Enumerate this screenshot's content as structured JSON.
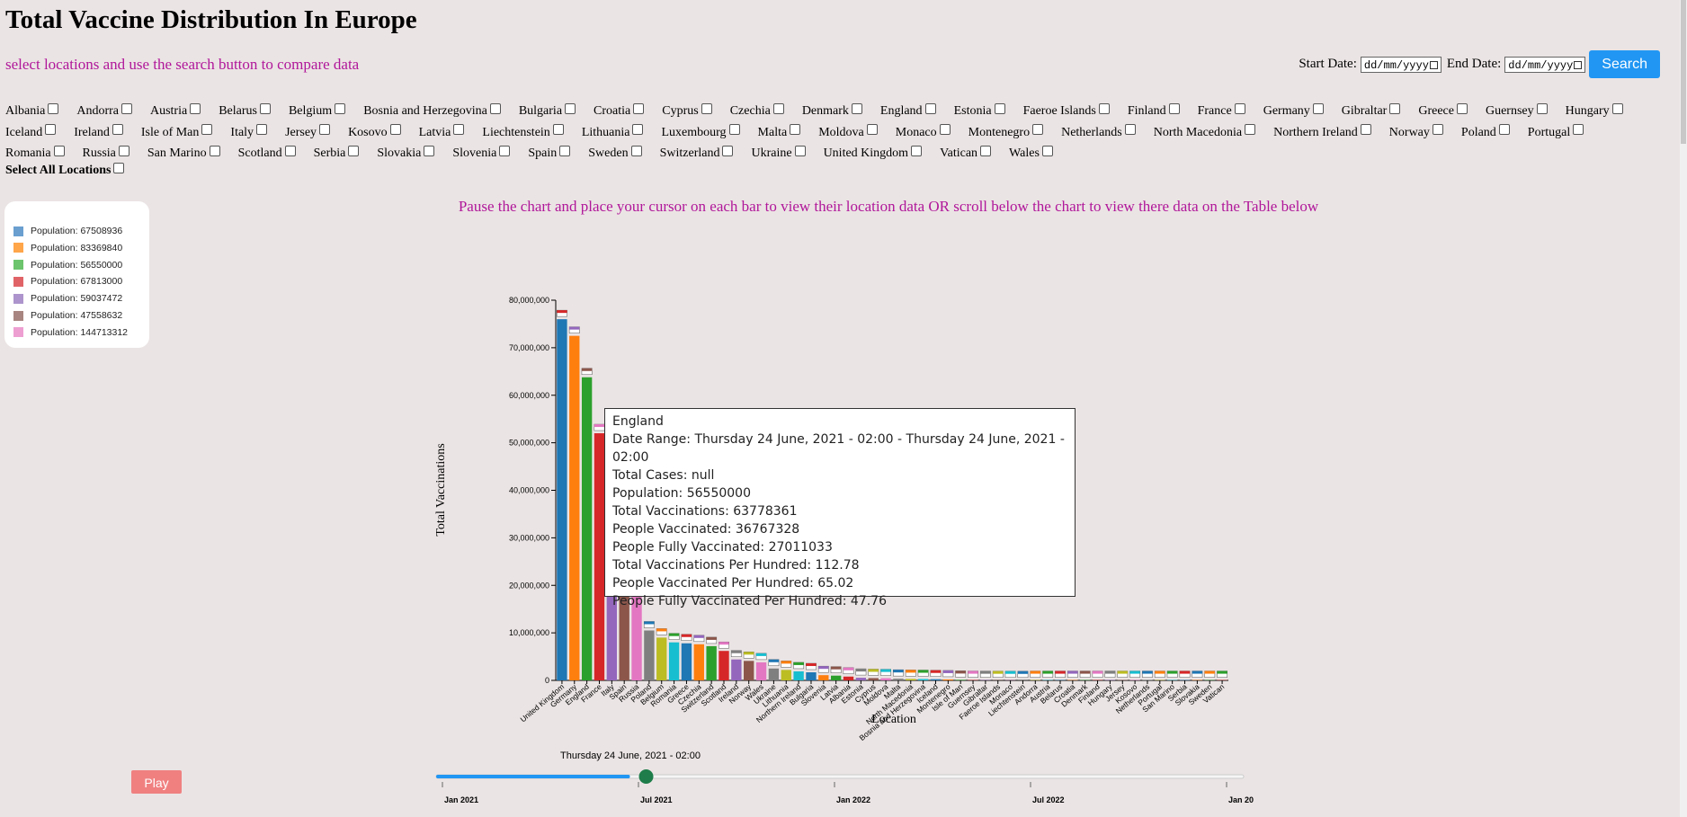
{
  "page": {
    "title": "Total Vaccine Distribution In Europe",
    "subtitle": "select locations and use the search button to compare data",
    "start_label": "Start Date:",
    "end_label": "End Date:",
    "date_placeholder": "dd/mm/yyyy",
    "search_label": "Search",
    "select_all_label": "Select All Locations",
    "pause_note": "Pause the chart and place your cursor on each bar to view their location data OR scroll below the chart to view there data on the Table below",
    "play_label": "Play",
    "slider_date": "Thursday 24 June, 2021 - 02:00"
  },
  "locations": [
    "Albania",
    "Andorra",
    "Austria",
    "Belarus",
    "Belgium",
    "Bosnia and Herzegovina",
    "Bulgaria",
    "Croatia",
    "Cyprus",
    "Czechia",
    "Denmark",
    "England",
    "Estonia",
    "Faeroe Islands",
    "Finland",
    "France",
    "Germany",
    "Gibraltar",
    "Greece",
    "Guernsey",
    "Hungary",
    "Iceland",
    "Ireland",
    "Isle of Man",
    "Italy",
    "Jersey",
    "Kosovo",
    "Latvia",
    "Liechtenstein",
    "Lithuania",
    "Luxembourg",
    "Malta",
    "Moldova",
    "Monaco",
    "Montenegro",
    "Netherlands",
    "North Macedonia",
    "Northern Ireland",
    "Norway",
    "Poland",
    "Portugal",
    "Romania",
    "Russia",
    "San Marino",
    "Scotland",
    "Serbia",
    "Slovakia",
    "Slovenia",
    "Spain",
    "Sweden",
    "Switzerland",
    "Ukraine",
    "United Kingdom",
    "Vatican",
    "Wales"
  ],
  "legend": [
    {
      "label": "Population: 67508936",
      "color": "#6a9fd0"
    },
    {
      "label": "Population: 83369840",
      "color": "#ffa54a"
    },
    {
      "label": "Population: 56550000",
      "color": "#6cc46c"
    },
    {
      "label": "Population: 67813000",
      "color": "#e06467"
    },
    {
      "label": "Population: 59037472",
      "color": "#ad94cc"
    },
    {
      "label": "Population: 47558632",
      "color": "#a88580"
    },
    {
      "label": "Population: 144713312",
      "color": "#ee9fd2"
    }
  ],
  "tooltip": {
    "lines": [
      "England",
      "Date Range: Thursday 24 June, 2021 - 02:00 - Thursday 24 June, 2021 - 02:00",
      "Total Cases: null",
      "Population: 56550000",
      "Total Vaccinations: 63778361",
      "People Vaccinated: 36767328",
      "People Fully Vaccinated: 27011033",
      "Total Vaccinations Per Hundred: 112.78",
      "People Vaccinated Per Hundred: 65.02",
      "People Fully Vaccinated Per Hundred: 47.76"
    ]
  },
  "timeline": {
    "ticks": [
      "Jan 2021",
      "Jul 2021",
      "Jan 2022",
      "Jul 2022",
      "Jan 20"
    ],
    "progress": 0.24
  },
  "chart_data": {
    "type": "bar",
    "xlabel": "Location",
    "ylabel": "Total Vaccinations",
    "ylim": [
      0,
      80000000
    ],
    "yticks": [
      "0",
      "10,000,000",
      "20,000,000",
      "30,000,000",
      "40,000,000",
      "50,000,000",
      "60,000,000",
      "70,000,000",
      "80,000,000"
    ],
    "categories": [
      "United Kingdom",
      "Germany",
      "England",
      "France",
      "Italy",
      "Spain",
      "Russia",
      "Poland",
      "Belgium",
      "Romania",
      "Greece",
      "Czechia",
      "Switzerland",
      "Scotland",
      "Ireland",
      "Norway",
      "Wales",
      "Ukraine",
      "Lithuania",
      "Northern Ireland",
      "Bulgaria",
      "Slovenia",
      "Latvia",
      "Albania",
      "Estonia",
      "Cyprus",
      "Moldova",
      "Malta",
      "North Macedonia",
      "Bosnia and Herzegovina",
      "Iceland",
      "Montenegro",
      "Isle of Man",
      "Guernsey",
      "Gibraltar",
      "Faeroe Islands",
      "Monaco",
      "Liechtenstein",
      "Andorra",
      "Austria",
      "Belarus",
      "Croatia",
      "Denmark",
      "Finland",
      "Hungary",
      "Jersey",
      "Kosovo",
      "Netherlands",
      "Portugal",
      "San Marino",
      "Serbia",
      "Slovakia",
      "Sweden",
      "Vatican"
    ],
    "values": [
      76000000,
      72500000,
      63778361,
      52000000,
      47000000,
      45000000,
      34000000,
      10500000,
      9000000,
      8000000,
      7800000,
      7600000,
      7200000,
      6200000,
      4400000,
      4100000,
      3800000,
      2500000,
      2200000,
      1900000,
      1700000,
      1100000,
      1000000,
      800000,
      550000,
      480000,
      450000,
      350000,
      300000,
      280000,
      240000,
      200000,
      120000,
      80000,
      70000,
      60000,
      50000,
      40000,
      80000,
      80000,
      80000,
      80000,
      80000,
      80000,
      80000,
      80000,
      80000,
      80000,
      80000,
      80000,
      80000,
      80000,
      80000,
      80000
    ],
    "colors": [
      "#1f77b4",
      "#ff7f0e",
      "#2ca02c",
      "#d62728",
      "#9467bd",
      "#8c564b",
      "#e377c2",
      "#7f7f7f",
      "#bcbd22",
      "#17becf",
      "#1f77b4",
      "#ff7f0e",
      "#2ca02c",
      "#d62728",
      "#9467bd",
      "#8c564b",
      "#e377c2",
      "#7f7f7f",
      "#bcbd22",
      "#17becf",
      "#1f77b4",
      "#ff7f0e",
      "#2ca02c",
      "#d62728",
      "#9467bd",
      "#8c564b",
      "#e377c2",
      "#7f7f7f",
      "#bcbd22",
      "#17becf",
      "#1f77b4",
      "#ff7f0e",
      "#2ca02c",
      "#d62728",
      "#9467bd",
      "#8c564b",
      "#e377c2",
      "#7f7f7f",
      "#bcbd22",
      "#17becf",
      "#1f77b4",
      "#ff7f0e",
      "#2ca02c",
      "#d62728",
      "#9467bd",
      "#8c564b",
      "#e377c2",
      "#7f7f7f",
      "#bcbd22",
      "#17becf",
      "#1f77b4",
      "#ff7f0e",
      "#2ca02c",
      "#d62728"
    ]
  }
}
